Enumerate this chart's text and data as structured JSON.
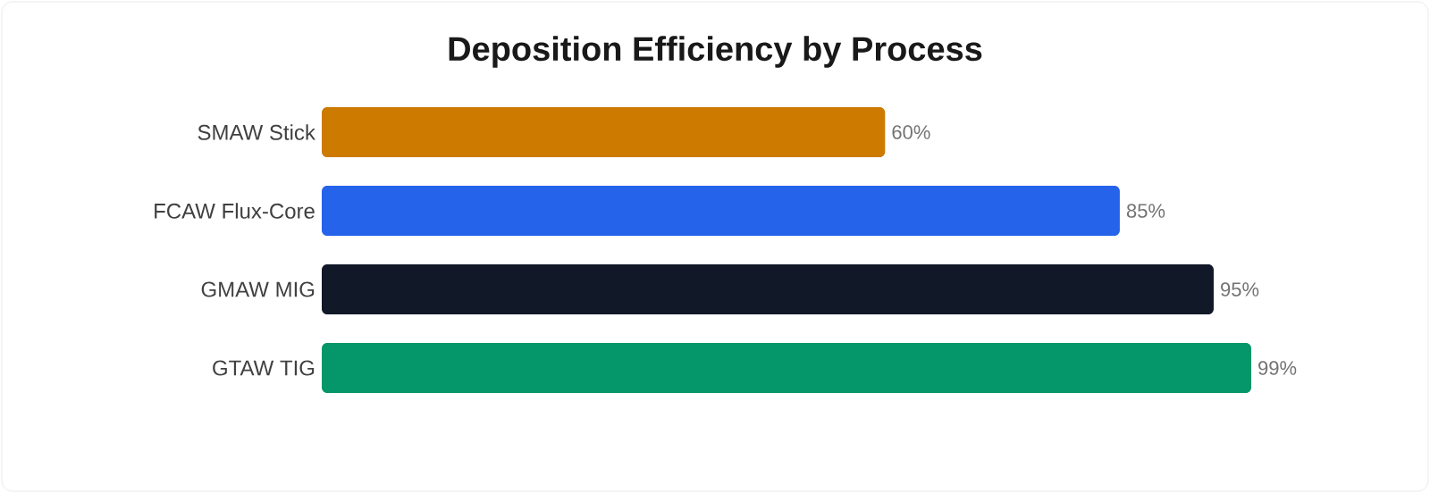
{
  "chart_data": {
    "type": "bar",
    "orientation": "horizontal",
    "title": "Deposition Efficiency by Process",
    "categories": [
      "SMAW Stick",
      "FCAW Flux-Core",
      "GMAW MIG",
      "GTAW TIG"
    ],
    "values": [
      60,
      85,
      95,
      99
    ],
    "colors": [
      "#cc7a00",
      "#2563eb",
      "#111827",
      "#059669"
    ],
    "value_labels": [
      "60%",
      "85%",
      "95%",
      "99%"
    ]
  }
}
